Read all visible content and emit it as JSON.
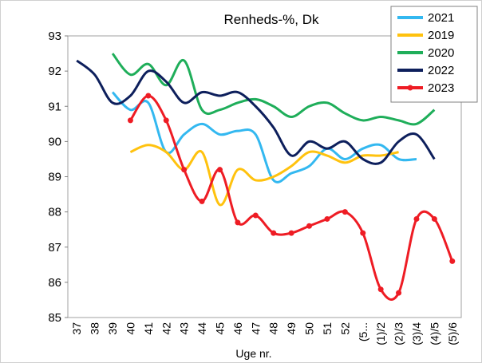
{
  "chart_data": {
    "type": "line",
    "title": "Renheds-%, Dk",
    "x_label": "Uge nr.",
    "categories": [
      "37",
      "38",
      "39",
      "40",
      "41",
      "42",
      "43",
      "44",
      "45",
      "46",
      "47",
      "48",
      "49",
      "50",
      "51",
      "52",
      "(5...",
      "(1)/2",
      "(2)/3",
      "(3)/4",
      "(4)/5",
      "(5)/6"
    ],
    "series": [
      {
        "name": "2021",
        "color": "#33b8f0",
        "markers": false,
        "values": [
          null,
          null,
          91.4,
          90.9,
          91.1,
          89.7,
          90.2,
          90.5,
          90.2,
          90.3,
          90.2,
          88.9,
          89.1,
          89.3,
          89.8,
          89.5,
          89.8,
          89.9,
          89.5,
          89.5,
          null,
          null
        ]
      },
      {
        "name": "2019",
        "color": "#ffc20e",
        "markers": false,
        "values": [
          null,
          null,
          null,
          89.7,
          89.9,
          89.7,
          89.2,
          89.7,
          88.2,
          89.2,
          88.9,
          89.0,
          89.3,
          89.7,
          89.6,
          89.4,
          89.6,
          89.6,
          89.7,
          null,
          null,
          null
        ]
      },
      {
        "name": "2020",
        "color": "#1fae5a",
        "markers": false,
        "values": [
          null,
          null,
          92.5,
          91.9,
          92.2,
          91.6,
          92.3,
          90.9,
          90.9,
          91.1,
          91.2,
          91.0,
          90.7,
          91.0,
          91.1,
          90.8,
          90.6,
          90.7,
          90.6,
          90.5,
          90.9,
          null
        ]
      },
      {
        "name": "2022",
        "color": "#0d1f5c",
        "markers": false,
        "values": [
          92.3,
          91.9,
          91.1,
          91.3,
          92.0,
          91.7,
          91.1,
          91.4,
          91.3,
          91.4,
          91.0,
          90.4,
          89.6,
          90.0,
          89.8,
          90.0,
          89.5,
          89.4,
          90.0,
          90.2,
          89.5,
          null
        ]
      },
      {
        "name": "2023",
        "color": "#ee1c24",
        "markers": true,
        "values": [
          null,
          null,
          null,
          90.6,
          91.3,
          90.6,
          89.2,
          88.3,
          89.2,
          87.7,
          87.9,
          87.4,
          87.4,
          87.6,
          87.8,
          88.0,
          87.4,
          85.8,
          85.7,
          87.8,
          87.8,
          86.6
        ]
      }
    ],
    "ylim": [
      85,
      93
    ],
    "yticks": [
      85,
      86,
      87,
      88,
      89,
      90,
      91,
      92,
      93
    ],
    "grid": false,
    "legend": "upper right"
  }
}
